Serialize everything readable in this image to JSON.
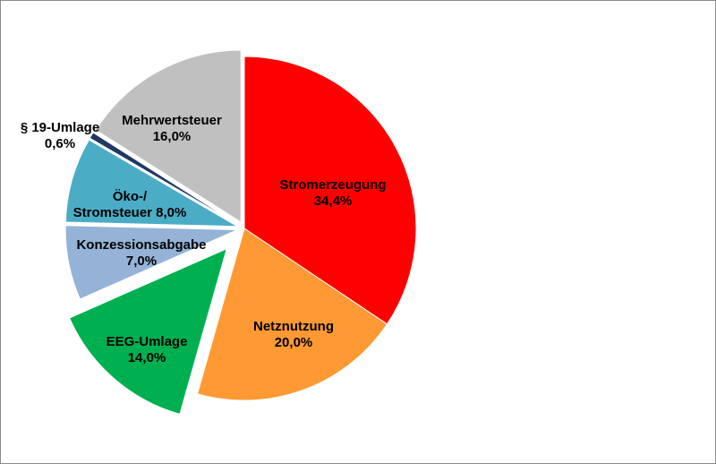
{
  "chart_data": {
    "type": "pie",
    "title": "",
    "legend": "none",
    "slices": [
      {
        "key": "strom",
        "lines": [
          "Stromerzeugung",
          "34,4%"
        ],
        "value": 34.4,
        "color": "#ff0000"
      },
      {
        "key": "netz",
        "lines": [
          "Netznutzung",
          "20,0%"
        ],
        "value": 20.0,
        "color": "#ff9933"
      },
      {
        "key": "eeg",
        "lines": [
          "EEG-Umlage",
          "14,0%"
        ],
        "value": 14.0,
        "color": "#00b050"
      },
      {
        "key": "konz",
        "lines": [
          "Konzessionsabgabe",
          "7,0%"
        ],
        "value": 7.0,
        "color": "#95b3d7"
      },
      {
        "key": "oeko",
        "lines": [
          "Öko-/",
          "Stromsteuer 8,0%"
        ],
        "value": 8.0,
        "color": "#4bacc6"
      },
      {
        "key": "p19",
        "lines": [
          "§ 19-Umlage",
          "0,6%"
        ],
        "value": 0.6,
        "color": "#1f3864"
      },
      {
        "key": "mwst",
        "lines": [
          "Mehrwertsteuer",
          "16,0%"
        ],
        "value": 16.0,
        "color": "#c0c0c0"
      }
    ]
  }
}
